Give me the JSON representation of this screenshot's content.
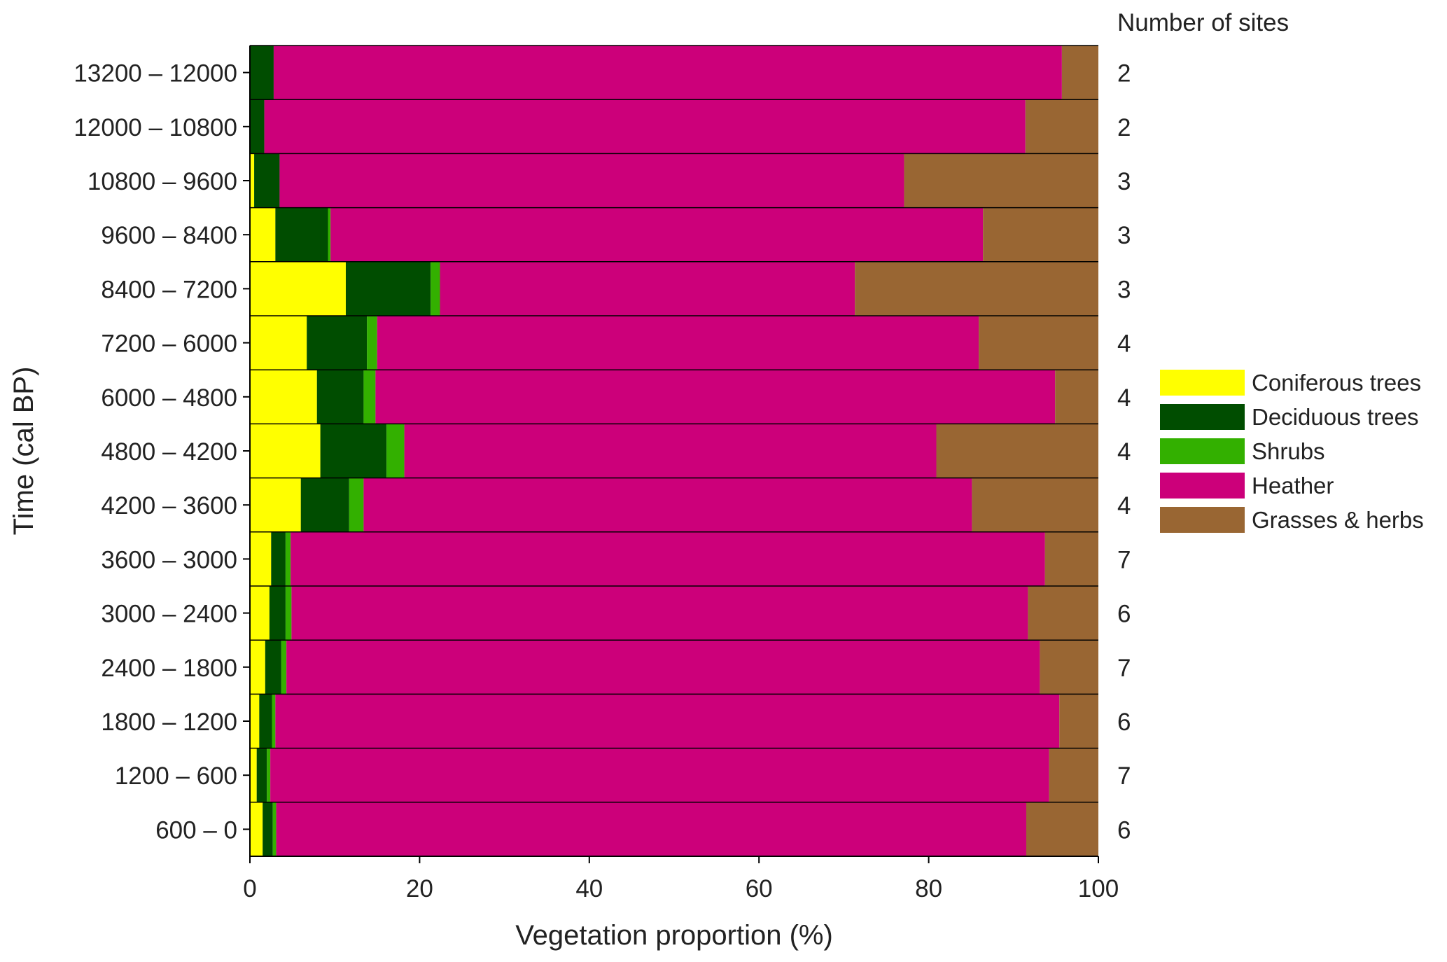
{
  "chart_data": {
    "type": "bar",
    "orientation": "horizontal",
    "stacked": true,
    "xlabel": "Vegetation proportion (%)",
    "ylabel": "Time (cal BP)",
    "xlim": [
      0,
      100
    ],
    "xticks": [
      0,
      20,
      40,
      60,
      80,
      100
    ],
    "sites_header": "Number of sites",
    "legend_position": "right",
    "categories": [
      "13200 – 12000",
      "12000 – 10800",
      "10800 – 9600",
      "9600 – 8400",
      "8400 – 7200",
      "7200 – 6000",
      "6000 – 4800",
      "4800 – 4200",
      "4200 – 3600",
      "3600 – 3000",
      "3000 – 2400",
      "2400 – 1800",
      "1800 – 1200",
      "1200 – 600",
      "600 – 0"
    ],
    "sites": [
      2,
      2,
      3,
      3,
      3,
      4,
      4,
      4,
      4,
      7,
      6,
      7,
      6,
      7,
      6
    ],
    "series": [
      {
        "name": "Coniferous trees",
        "color": "#FFFF00",
        "values": [
          0.0,
          0.0,
          0.5,
          3.0,
          11.3,
          6.7,
          7.9,
          8.3,
          6.0,
          2.5,
          2.3,
          1.8,
          1.1,
          0.8,
          1.5
        ]
      },
      {
        "name": "Deciduous trees",
        "color": "#004D00",
        "values": [
          2.8,
          1.7,
          3.0,
          6.2,
          10.0,
          7.1,
          5.5,
          7.8,
          5.7,
          1.7,
          1.9,
          1.9,
          1.5,
          1.2,
          1.2
        ]
      },
      {
        "name": "Shrubs",
        "color": "#33B000",
        "values": [
          0.0,
          0.0,
          0.0,
          0.3,
          1.1,
          1.2,
          1.4,
          2.1,
          1.7,
          0.6,
          0.7,
          0.6,
          0.4,
          0.4,
          0.4
        ]
      },
      {
        "name": "Heather",
        "color": "#CC007A",
        "values": [
          92.9,
          89.7,
          73.6,
          76.9,
          48.9,
          70.9,
          80.1,
          62.7,
          71.7,
          88.9,
          86.8,
          88.8,
          92.4,
          91.8,
          88.4
        ]
      },
      {
        "name": "Grasses & herbs",
        "color": "#996633",
        "values": [
          4.3,
          8.6,
          22.9,
          13.6,
          28.7,
          14.1,
          5.1,
          19.1,
          14.9,
          6.3,
          8.3,
          6.9,
          4.6,
          5.8,
          8.5
        ]
      }
    ]
  }
}
